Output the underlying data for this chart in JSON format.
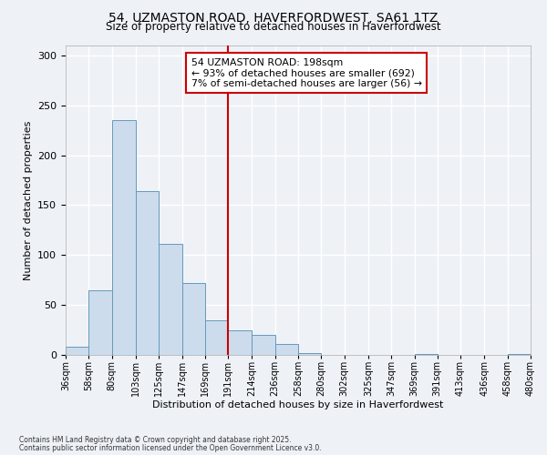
{
  "title": "54, UZMASTON ROAD, HAVERFORDWEST, SA61 1TZ",
  "subtitle": "Size of property relative to detached houses in Haverfordwest",
  "xlabel": "Distribution of detached houses by size in Haverfordwest",
  "ylabel": "Number of detached properties",
  "bar_edges": [
    36,
    58,
    80,
    103,
    125,
    147,
    169,
    191,
    214,
    236,
    258,
    280,
    302,
    325,
    347,
    369,
    391,
    413,
    436,
    458,
    480
  ],
  "bar_heights": [
    8,
    65,
    235,
    164,
    111,
    72,
    35,
    25,
    20,
    11,
    2,
    0,
    0,
    0,
    0,
    1,
    0,
    0,
    0,
    1
  ],
  "bar_color": "#ccdcec",
  "bar_edge_color": "#6699bb",
  "vline_x": 191,
  "vline_color": "#cc0000",
  "annotation_line1": "54 UZMASTON ROAD: 198sqm",
  "annotation_line2": "← 93% of detached houses are smaller (692)",
  "annotation_line3": "7% of semi-detached houses are larger (56) →",
  "annotation_box_color": "#cc0000",
  "ylim": [
    0,
    310
  ],
  "yticks": [
    0,
    50,
    100,
    150,
    200,
    250,
    300
  ],
  "tick_labels": [
    "36sqm",
    "58sqm",
    "80sqm",
    "103sqm",
    "125sqm",
    "147sqm",
    "169sqm",
    "191sqm",
    "214sqm",
    "236sqm",
    "258sqm",
    "280sqm",
    "302sqm",
    "325sqm",
    "347sqm",
    "369sqm",
    "391sqm",
    "413sqm",
    "436sqm",
    "458sqm",
    "480sqm"
  ],
  "footnote1": "Contains HM Land Registry data © Crown copyright and database right 2025.",
  "footnote2": "Contains public sector information licensed under the Open Government Licence v3.0.",
  "bg_color": "#eef2f7",
  "plot_bg_color": "#eef2f7",
  "grid_color": "#ffffff"
}
